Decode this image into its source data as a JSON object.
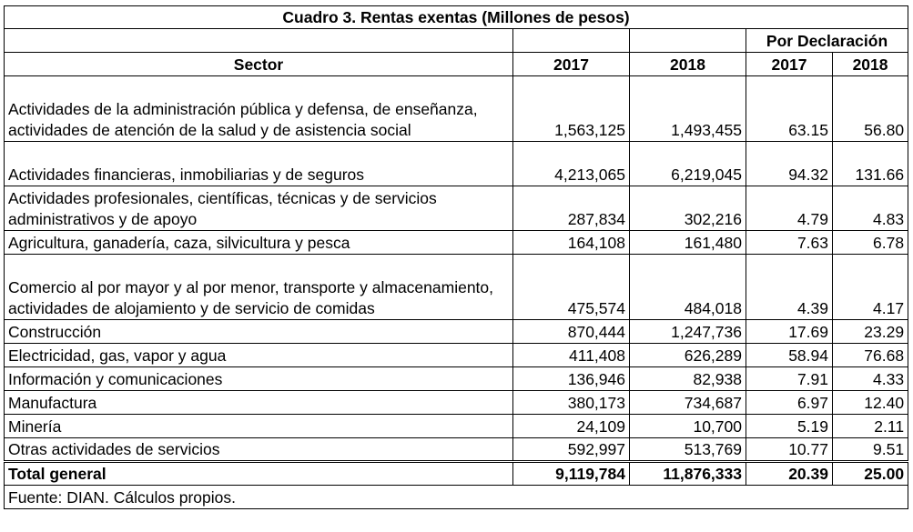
{
  "title": "Cuadro 3. Rentas exentas (Millones de pesos)",
  "header": {
    "group_label": "Por Declaración",
    "sector_label": "Sector",
    "col_2017": "2017",
    "col_2018": "2018",
    "pd_2017": "2017",
    "pd_2018": "2018"
  },
  "rows": [
    {
      "sector": "Actividades de la administración pública y defensa, de enseñanza, actividades de atención de la salud y de asistencia social",
      "v2017": "1,563,125",
      "v2018": "1,493,455",
      "p2017": "63.15",
      "p2018": "56.80"
    },
    {
      "sector": "Actividades financieras, inmobiliarias y de seguros",
      "v2017": "4,213,065",
      "v2018": "6,219,045",
      "p2017": "94.32",
      "p2018": "131.66"
    },
    {
      "sector": "Actividades profesionales, científicas, técnicas y de servicios administrativos y de apoyo",
      "v2017": "287,834",
      "v2018": "302,216",
      "p2017": "4.79",
      "p2018": "4.83"
    },
    {
      "sector": "Agricultura, ganadería, caza, silvicultura y pesca",
      "v2017": "164,108",
      "v2018": "161,480",
      "p2017": "7.63",
      "p2018": "6.78"
    },
    {
      "sector": "Comercio al por mayor y al por menor, transporte y almacenamiento, actividades de alojamiento y de servicio de comidas",
      "v2017": "475,574",
      "v2018": "484,018",
      "p2017": "4.39",
      "p2018": "4.17"
    },
    {
      "sector": "Construcción",
      "v2017": "870,444",
      "v2018": "1,247,736",
      "p2017": "17.69",
      "p2018": "23.29"
    },
    {
      "sector": "Electricidad, gas, vapor y agua",
      "v2017": "411,408",
      "v2018": "626,289",
      "p2017": "58.94",
      "p2018": "76.68"
    },
    {
      "sector": "Información y comunicaciones",
      "v2017": "136,946",
      "v2018": "82,938",
      "p2017": "7.91",
      "p2018": "4.33"
    },
    {
      "sector": "Manufactura",
      "v2017": "380,173",
      "v2018": "734,687",
      "p2017": "6.97",
      "p2018": "12.40"
    },
    {
      "sector": "Minería",
      "v2017": "24,109",
      "v2018": "10,700",
      "p2017": "5.19",
      "p2018": "2.11"
    },
    {
      "sector": "Otras actividades de servicios",
      "v2017": "592,997",
      "v2018": "513,769",
      "p2017": "10.77",
      "p2018": "9.51"
    }
  ],
  "total": {
    "sector": "Total general",
    "v2017": "9,119,784",
    "v2018": "11,876,333",
    "p2017": "20.39",
    "p2018": "25.00"
  },
  "source": "Fuente: DIAN. Cálculos propios."
}
